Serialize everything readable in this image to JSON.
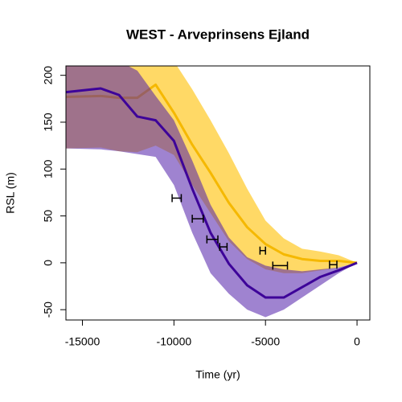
{
  "chart_data": {
    "type": "line",
    "title": "WEST -  Arveprinsens Ejland",
    "x_label": "Time (yr)",
    "y_label": "RSL (m)",
    "xlim": [
      -15900,
      700
    ],
    "ylim": [
      -61,
      210
    ],
    "xticks": [
      -15000,
      -10000,
      -5000,
      0
    ],
    "yticks": [
      -50,
      0,
      50,
      100,
      150,
      200
    ],
    "x": [
      -15900,
      -14000,
      -13000,
      -12000,
      -11000,
      -10000,
      -9000,
      -8000,
      -7000,
      -6000,
      -5000,
      -4000,
      -3000,
      -2000,
      -1000,
      0
    ],
    "series": [
      {
        "color": "#f5b800",
        "band_color": "#ffd966",
        "band_opacity": 1,
        "values": [
          177,
          178,
          176,
          176,
          190,
          160,
          126,
          96,
          64,
          38,
          20,
          9,
          4,
          2,
          2,
          0
        ],
        "upper": [
          250,
          250,
          245,
          240,
          235,
          215,
          185,
          152,
          117,
          79,
          45,
          26,
          15,
          12,
          8,
          0
        ],
        "lower": [
          122,
          123,
          119,
          118,
          125,
          115,
          83,
          53,
          23,
          4,
          -7,
          -11,
          -11,
          -8,
          -5,
          0
        ]
      },
      {
        "color": "#3d0399",
        "band_color": "#501eaa",
        "band_opacity": 0.55,
        "values": [
          182,
          186,
          179,
          156,
          152,
          130,
          79,
          32,
          -1,
          -24,
          -37,
          -37,
          -26,
          -15,
          -8,
          0
        ],
        "upper": [
          240,
          230,
          215,
          205,
          178,
          152,
          109,
          62,
          27,
          6,
          -3,
          -7,
          -9,
          -7,
          -5,
          0
        ],
        "lower": [
          122,
          121,
          119,
          116,
          113,
          83,
          32,
          -11,
          -33,
          -50,
          -58,
          -50,
          -37,
          -24,
          -11,
          0
        ]
      }
    ],
    "errorbars": [
      {
        "x_low": -10100,
        "x_high": -9600,
        "y": 69
      },
      {
        "x_low": -9000,
        "x_high": -8400,
        "y": 47
      },
      {
        "x_low": -8200,
        "x_high": -7600,
        "y": 25
      },
      {
        "x_low": -7500,
        "x_high": -7100,
        "y": 17
      },
      {
        "x_low": -5300,
        "x_high": -5000,
        "y": 13
      },
      {
        "x_low": -4600,
        "x_high": -3800,
        "y": -3
      },
      {
        "x_low": -1500,
        "x_high": -1100,
        "y": -2
      }
    ]
  }
}
